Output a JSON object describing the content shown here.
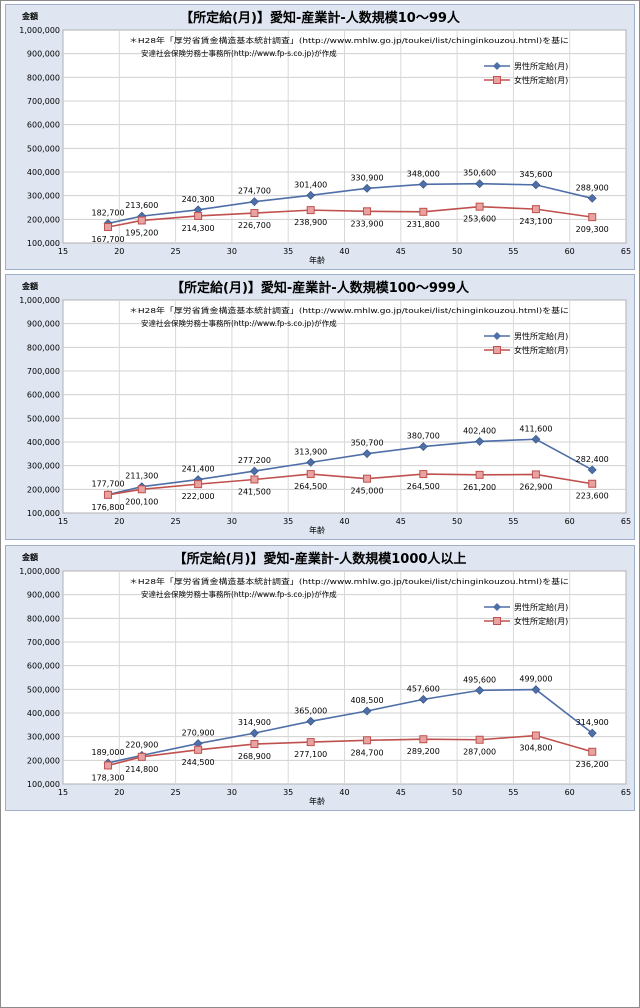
{
  "chart_data": [
    {
      "type": "line",
      "title": "【所定給(月)】愛知-産業計-人数規模10～99人",
      "ylabel": "金額",
      "xlabel": "年齢",
      "note_line1": "＊H28年「厚労省賃金構造基本統計調査」(http://www.mhlw.go.jp/toukei/list/chinginkouzou.html)を基に",
      "note_line2": "安達社会保険労務士事務所(http://www.fp-s.co.jp)が作成",
      "xlim": [
        15,
        65
      ],
      "ylim": [
        100000,
        1000000
      ],
      "x_ticks": [
        "15",
        "20",
        "25",
        "30",
        "35",
        "40",
        "45",
        "50",
        "55",
        "60",
        "65"
      ],
      "y_ticks": [
        "100,000",
        "200,000",
        "300,000",
        "400,000",
        "500,000",
        "600,000",
        "700,000",
        "800,000",
        "900,000",
        "1,000,000"
      ],
      "legend_position": "top-right",
      "grid": true,
      "x": [
        19,
        22,
        27,
        32,
        37,
        42,
        47,
        52,
        57,
        62
      ],
      "series": [
        {
          "name": "男性所定給(月)",
          "color": "#4f6fa8",
          "marker": "diamond",
          "values": [
            182700,
            213600,
            240300,
            274700,
            301400,
            330900,
            348000,
            350600,
            345600,
            288900
          ],
          "labels": [
            "182,700",
            "213,600",
            "240,300",
            "274,700",
            "301,400",
            "330,900",
            "348,000",
            "350,600",
            "345,600",
            "288,900"
          ]
        },
        {
          "name": "女性所定給(月)",
          "color": "#c0504d",
          "marker": "square",
          "values": [
            167700,
            195200,
            214300,
            226700,
            238900,
            233900,
            231800,
            253600,
            243100,
            209300
          ],
          "labels": [
            "167,700",
            "195,200",
            "214,300",
            "226,700",
            "238,900",
            "233,900",
            "231,800",
            "253,600",
            "243,100",
            "209,300"
          ]
        }
      ]
    },
    {
      "type": "line",
      "title": "【所定給(月)】愛知-産業計-人数規模100～999人",
      "ylabel": "金額",
      "xlabel": "年齢",
      "note_line1": "＊H28年「厚労省賃金構造基本統計調査」(http://www.mhlw.go.jp/toukei/list/chinginkouzou.html)を基に",
      "note_line2": "安達社会保険労務士事務所(http://www.fp-s.co.jp)が作成",
      "xlim": [
        15,
        65
      ],
      "ylim": [
        100000,
        1000000
      ],
      "x_ticks": [
        "15",
        "20",
        "25",
        "30",
        "35",
        "40",
        "45",
        "50",
        "55",
        "60",
        "65"
      ],
      "y_ticks": [
        "100,000",
        "200,000",
        "300,000",
        "400,000",
        "500,000",
        "600,000",
        "700,000",
        "800,000",
        "900,000",
        "1,000,000"
      ],
      "legend_position": "top-right",
      "grid": true,
      "x": [
        19,
        22,
        27,
        32,
        37,
        42,
        47,
        52,
        57,
        62
      ],
      "series": [
        {
          "name": "男性所定給(月)",
          "color": "#4f6fa8",
          "marker": "diamond",
          "values": [
            177700,
            211300,
            241400,
            277200,
            313900,
            350700,
            380700,
            402400,
            411600,
            282400
          ],
          "labels": [
            "177,700",
            "211,300",
            "241,400",
            "277,200",
            "313,900",
            "350,700",
            "380,700",
            "402,400",
            "411,600",
            "282,400"
          ]
        },
        {
          "name": "女性所定給(月)",
          "color": "#c0504d",
          "marker": "square",
          "values": [
            176800,
            200100,
            222000,
            241500,
            264500,
            245000,
            264500,
            261200,
            262900,
            223600
          ],
          "labels": [
            "176,800",
            "200,100",
            "222,000",
            "241,500",
            "264,500",
            "245,000",
            "264,500",
            "261,200",
            "262,900",
            "223,600"
          ]
        }
      ]
    },
    {
      "type": "line",
      "title": "【所定給(月)】愛知-産業計-人数規模1000人以上",
      "ylabel": "金額",
      "xlabel": "年齢",
      "note_line1": "＊H28年「厚労省賃金構造基本統計調査」(http://www.mhlw.go.jp/toukei/list/chinginkouzou.html)を基に",
      "note_line2": "安達社会保険労務士事務所(http://www.fp-s.co.jp)が作成",
      "xlim": [
        15,
        65
      ],
      "ylim": [
        100000,
        1000000
      ],
      "x_ticks": [
        "15",
        "20",
        "25",
        "30",
        "35",
        "40",
        "45",
        "50",
        "55",
        "60",
        "65"
      ],
      "y_ticks": [
        "100,000",
        "200,000",
        "300,000",
        "400,000",
        "500,000",
        "600,000",
        "700,000",
        "800,000",
        "900,000",
        "1,000,000"
      ],
      "legend_position": "top-right",
      "grid": true,
      "x": [
        19,
        22,
        27,
        32,
        37,
        42,
        47,
        52,
        57,
        62
      ],
      "series": [
        {
          "name": "男性所定給(月)",
          "color": "#4f6fa8",
          "marker": "diamond",
          "values": [
            189000,
            220900,
            270900,
            314900,
            365000,
            408500,
            457600,
            495600,
            499000,
            314900
          ],
          "labels": [
            "189,000",
            "220,900",
            "270,900",
            "314,900",
            "365,000",
            "408,500",
            "457,600",
            "495,600",
            "499,000",
            "314,900"
          ]
        },
        {
          "name": "女性所定給(月)",
          "color": "#c0504d",
          "marker": "square",
          "values": [
            178300,
            214800,
            244500,
            268900,
            277100,
            284700,
            289200,
            287000,
            304800,
            236200
          ],
          "labels": [
            "178,300",
            "214,800",
            "244,500",
            "268,900",
            "277,100",
            "284,700",
            "289,200",
            "287,000",
            "304,800",
            "236,200"
          ]
        }
      ]
    }
  ]
}
